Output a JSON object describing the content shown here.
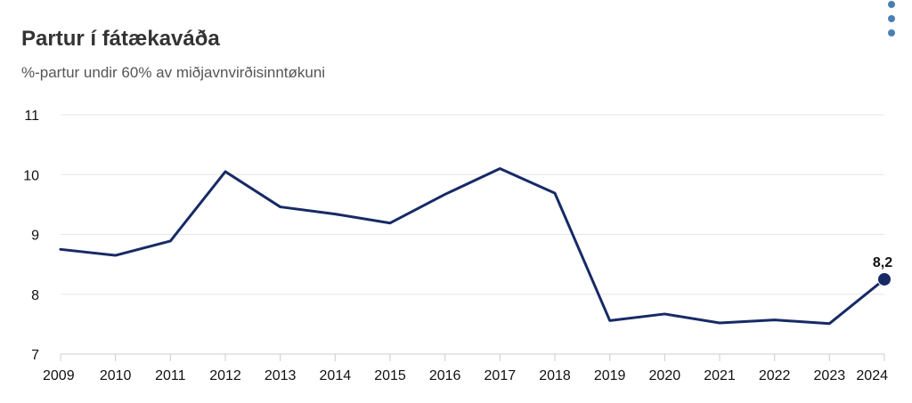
{
  "colors": {
    "line": "#172a66",
    "grid": "#e6e6e6",
    "axis": "#cccccc",
    "menu_dots": "#4a7fb5"
  },
  "menu": {
    "icon": "vertical-dots-icon"
  },
  "chart_data": {
    "type": "line",
    "title": "Partur í fátækaváða",
    "subtitle": "%-partur undir 60% av miðjavnvirðisinntøkuni",
    "xlabel": "",
    "ylabel": "",
    "x": [
      "2009",
      "2010",
      "2011",
      "2012",
      "2013",
      "2014",
      "2015",
      "2016",
      "2017",
      "2018",
      "2019",
      "2020",
      "2021",
      "2022",
      "2023",
      "2024"
    ],
    "series": [
      {
        "values": [
          8.75,
          8.65,
          8.89,
          10.05,
          9.46,
          9.34,
          9.19,
          9.67,
          10.1,
          9.69,
          7.56,
          7.67,
          7.52,
          7.57,
          7.51,
          8.25
        ]
      }
    ],
    "ylim": [
      7,
      11
    ],
    "yticks": [
      "7",
      "8",
      "9",
      "10",
      "11"
    ],
    "grid": true,
    "legend": "none",
    "annotations": [
      {
        "x": "2024",
        "label": "8,2"
      }
    ]
  }
}
